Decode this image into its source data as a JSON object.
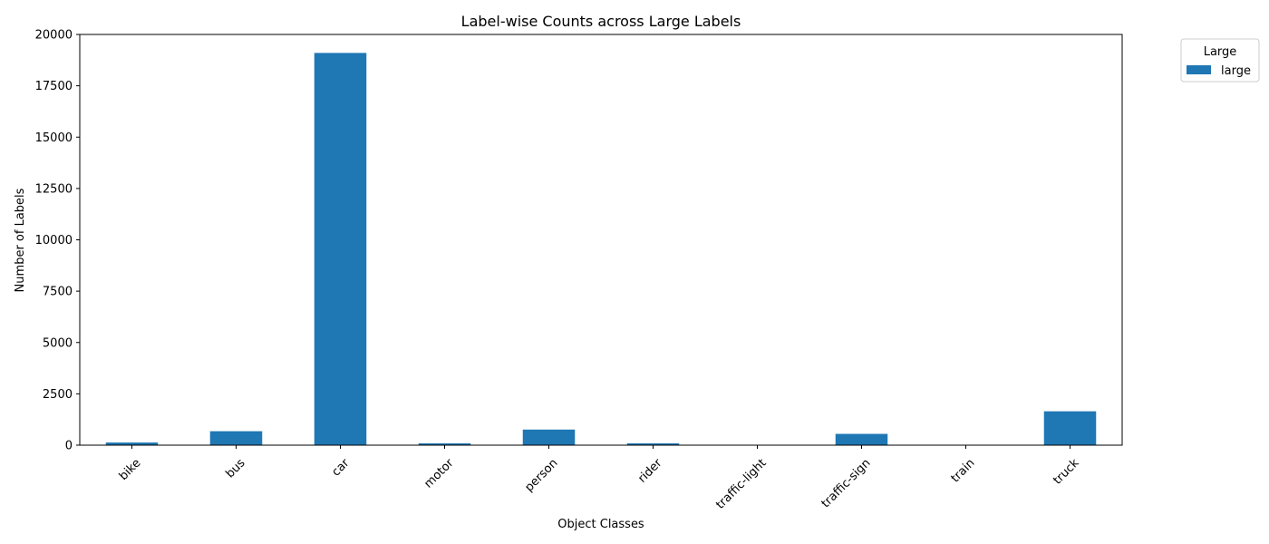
{
  "chart_data": {
    "type": "bar",
    "title": "Label-wise Counts across Large Labels",
    "xlabel": "Object Classes",
    "ylabel": "Number of Labels",
    "categories": [
      "bike",
      "bus",
      "car",
      "motor",
      "person",
      "rider",
      "traffic-light",
      "traffic-sign",
      "train",
      "truck"
    ],
    "series": [
      {
        "name": "large",
        "color": "#1f77b4",
        "values": [
          130,
          680,
          19100,
          90,
          760,
          90,
          10,
          550,
          10,
          1650
        ]
      }
    ],
    "ylim": [
      0,
      20000
    ],
    "yticks": [
      0,
      2500,
      5000,
      7500,
      10000,
      12500,
      15000,
      17500,
      20000
    ],
    "grid": false,
    "legend": {
      "title": "Large",
      "placement": "upper-right-outside"
    }
  }
}
